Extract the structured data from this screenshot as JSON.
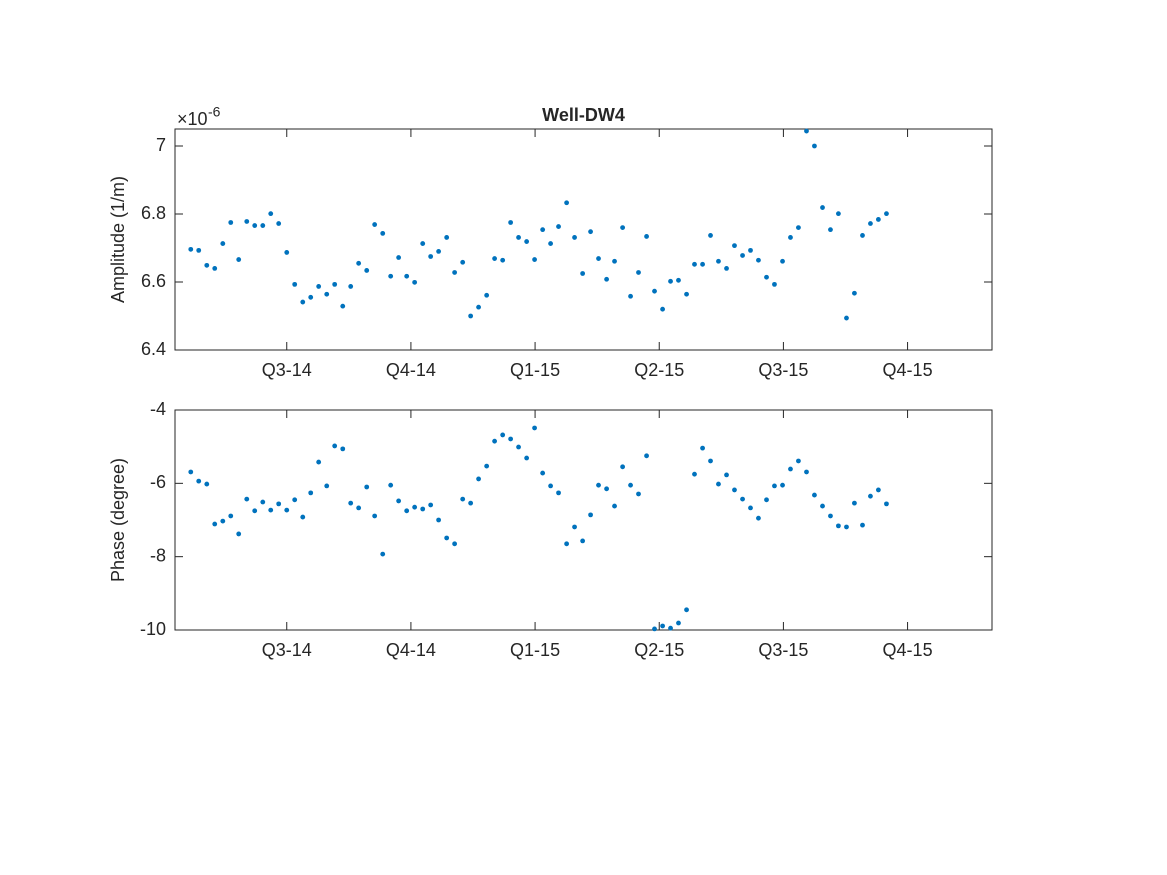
{
  "chart_data": [
    {
      "type": "scatter",
      "title": "Well-DW4",
      "y_label": "Amplitude (1/m)",
      "y_scale_base": "×10",
      "y_scale_exponent": "-6",
      "xlim": [
        0.1,
        6.68
      ],
      "ylim": [
        6.4,
        7.05
      ],
      "xticks": [
        {
          "value": 1,
          "label": "Q3-14"
        },
        {
          "value": 2,
          "label": "Q4-14"
        },
        {
          "value": 3,
          "label": "Q1-15"
        },
        {
          "value": 4,
          "label": "Q2-15"
        },
        {
          "value": 5,
          "label": "Q3-15"
        },
        {
          "value": 6,
          "label": "Q4-15"
        }
      ],
      "yticks": [
        6.4,
        6.6,
        6.8,
        7
      ],
      "grid": false,
      "series": [
        {
          "color": "#0072bd",
          "x": [
            0.227,
            0.291,
            0.356,
            0.42,
            0.485,
            0.549,
            0.613,
            0.678,
            0.742,
            0.807,
            0.871,
            0.935,
            1.0,
            1.064,
            1.129,
            1.193,
            1.257,
            1.322,
            1.386,
            1.451,
            1.515,
            1.579,
            1.644,
            1.708,
            1.773,
            1.837,
            1.901,
            1.966,
            2.03,
            2.095,
            2.159,
            2.223,
            2.288,
            2.352,
            2.417,
            2.481,
            2.545,
            2.61,
            2.674,
            2.739,
            2.803,
            2.867,
            2.932,
            2.996,
            3.061,
            3.125,
            3.189,
            3.254,
            3.318,
            3.383,
            3.447,
            3.511,
            3.576,
            3.64,
            3.705,
            3.769,
            3.833,
            3.898,
            3.962,
            4.027,
            4.091,
            4.155,
            4.22,
            4.284,
            4.349,
            4.413,
            4.477,
            4.542,
            4.606,
            4.671,
            4.735,
            4.799,
            4.864,
            4.928,
            4.993,
            5.057,
            5.121,
            5.186,
            5.25,
            5.315,
            5.379,
            5.443,
            5.508,
            5.572,
            5.637,
            5.701,
            5.765,
            5.83
          ],
          "values": [
            6.696,
            6.693,
            6.649,
            6.64,
            6.713,
            6.775,
            6.666,
            6.778,
            6.766,
            6.766,
            6.801,
            6.772,
            6.687,
            6.593,
            6.541,
            6.555,
            6.587,
            6.564,
            6.593,
            6.529,
            6.587,
            6.655,
            6.634,
            6.769,
            6.743,
            6.617,
            6.672,
            6.617,
            6.599,
            6.713,
            6.675,
            6.69,
            6.731,
            6.628,
            6.658,
            6.5,
            6.526,
            6.561,
            6.669,
            6.664,
            6.775,
            6.731,
            6.719,
            6.666,
            6.754,
            6.713,
            6.763,
            6.833,
            6.731,
            6.625,
            6.748,
            6.669,
            6.608,
            6.661,
            6.76,
            6.558,
            6.628,
            6.734,
            6.573,
            6.52,
            6.602,
            6.605,
            6.564,
            6.652,
            6.652,
            6.737,
            6.661,
            6.64,
            6.707,
            6.678,
            6.693,
            6.664,
            6.614,
            6.593,
            6.661,
            6.731,
            6.76,
            7.044,
            7.0,
            6.819,
            6.754,
            6.801,
            6.494,
            6.567,
            6.737,
            6.772,
            6.784,
            6.801
          ]
        }
      ]
    },
    {
      "type": "scatter",
      "y_label": "Phase (degree)",
      "xlim": [
        0.1,
        6.68
      ],
      "ylim": [
        -10,
        -4
      ],
      "xticks": [
        {
          "value": 1,
          "label": "Q3-14"
        },
        {
          "value": 2,
          "label": "Q4-14"
        },
        {
          "value": 3,
          "label": "Q1-15"
        },
        {
          "value": 4,
          "label": "Q2-15"
        },
        {
          "value": 5,
          "label": "Q3-15"
        },
        {
          "value": 6,
          "label": "Q4-15"
        }
      ],
      "yticks": [
        -10,
        -8,
        -6,
        -4
      ],
      "grid": false,
      "series": [
        {
          "color": "#0072bd",
          "x": [
            0.227,
            0.291,
            0.356,
            0.42,
            0.485,
            0.549,
            0.613,
            0.678,
            0.742,
            0.807,
            0.871,
            0.935,
            1.0,
            1.064,
            1.129,
            1.193,
            1.257,
            1.322,
            1.386,
            1.451,
            1.515,
            1.579,
            1.644,
            1.708,
            1.773,
            1.837,
            1.901,
            1.966,
            2.03,
            2.095,
            2.159,
            2.223,
            2.288,
            2.352,
            2.417,
            2.481,
            2.545,
            2.61,
            2.674,
            2.739,
            2.803,
            2.867,
            2.932,
            2.996,
            3.061,
            3.125,
            3.189,
            3.254,
            3.318,
            3.383,
            3.447,
            3.511,
            3.576,
            3.64,
            3.705,
            3.769,
            3.833,
            3.898,
            3.962,
            4.027,
            4.091,
            4.155,
            4.22,
            4.284,
            4.349,
            4.413,
            4.477,
            4.542,
            4.606,
            4.671,
            4.735,
            4.799,
            4.864,
            4.928,
            4.993,
            5.057,
            5.121,
            5.186,
            5.25,
            5.315,
            5.379,
            5.443,
            5.508,
            5.572,
            5.637,
            5.701,
            5.765,
            5.83
          ],
          "values": [
            -5.69,
            -5.94,
            -6.02,
            -7.11,
            -7.03,
            -6.89,
            -7.38,
            -6.43,
            -6.75,
            -6.51,
            -6.73,
            -6.56,
            -6.73,
            -6.45,
            -6.92,
            -6.26,
            -5.42,
            -6.07,
            -4.98,
            -5.06,
            -6.54,
            -6.67,
            -6.1,
            -6.89,
            -7.93,
            -6.05,
            -6.48,
            -6.75,
            -6.65,
            -6.7,
            -6.59,
            -7.0,
            -7.49,
            -7.65,
            -6.43,
            -6.54,
            -5.88,
            -5.53,
            -4.85,
            -4.68,
            -4.79,
            -5.01,
            -5.31,
            -4.49,
            -5.72,
            -6.07,
            -6.26,
            -7.65,
            -7.19,
            -7.57,
            -6.86,
            -6.05,
            -6.15,
            -6.62,
            -5.55,
            -6.05,
            -6.29,
            -5.25,
            -9.97,
            -9.89,
            -9.95,
            -9.81,
            -9.45,
            -5.75,
            -5.04,
            -5.39,
            -6.02,
            -5.77,
            -6.18,
            -6.43,
            -6.67,
            -6.95,
            -6.45,
            -6.07,
            -6.05,
            -5.61,
            -5.39,
            -5.69,
            -6.32,
            -6.62,
            -6.89,
            -7.16,
            -7.19,
            -6.54,
            -7.14,
            -6.35,
            -6.18,
            -6.56
          ]
        }
      ]
    }
  ]
}
